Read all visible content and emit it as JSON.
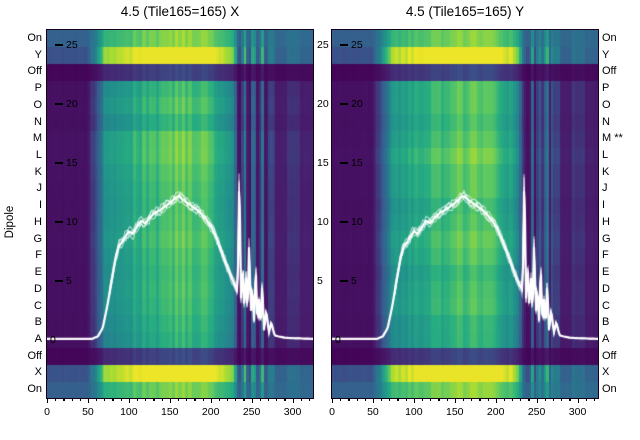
{
  "chart_data": {
    "type": "heatmap",
    "plots": [
      {
        "title": "4.5 (Tile165=165) X"
      },
      {
        "title": "4.5 (Tile165=165) Y"
      }
    ],
    "ylabel": "Dipole",
    "x_ticks": [
      0,
      50,
      100,
      150,
      200,
      250,
      300
    ],
    "x_minor_step": 10,
    "x_range": [
      0,
      325
    ],
    "y_ticks": [
      25,
      20,
      15,
      10,
      5
    ],
    "y_zero": "0",
    "rows_left": [
      "On",
      "Y",
      "Off",
      "P",
      "O",
      "N",
      "M",
      "L",
      "K",
      "J",
      "I",
      "H",
      "G",
      "F",
      "E",
      "D",
      "C",
      "B",
      "A",
      "Off",
      "X",
      "On"
    ],
    "rows_right": [
      "On",
      "Y",
      "Off",
      "P",
      "O",
      "N",
      "M **",
      "L",
      "K",
      "J",
      "I",
      "H",
      "G",
      "F",
      "E",
      "D",
      "C",
      "B",
      "A",
      "Off",
      "X",
      "On"
    ],
    "row_types": [
      "on",
      "bright",
      "off",
      "letter",
      "letter",
      "letter",
      "letter",
      "letter",
      "letter",
      "letter",
      "letter",
      "letter",
      "letter",
      "letter",
      "letter",
      "letter",
      "letter",
      "letter",
      "letter",
      "off",
      "bright",
      "on"
    ],
    "row_gains": [
      1,
      1,
      1,
      0.92,
      0.96,
      0.9,
      1.0,
      1.03,
      0.99,
      0.96,
      0.91,
      0.94,
      0.97,
      0.91,
      0.88,
      0.93,
      0.9,
      0.86,
      0.82,
      1,
      1,
      1
    ],
    "colormap": "viridis",
    "colormap_anchors": [
      [
        0.0,
        "#440154"
      ],
      [
        0.13,
        "#471f6e"
      ],
      [
        0.25,
        "#39568c"
      ],
      [
        0.38,
        "#2d708e"
      ],
      [
        0.5,
        "#21908c"
      ],
      [
        0.63,
        "#27ad81"
      ],
      [
        0.75,
        "#5cc863"
      ],
      [
        0.88,
        "#aadc32"
      ],
      [
        1.0,
        "#fde725"
      ]
    ],
    "line_color": "#ffffff",
    "line_profile": {
      "n_traces": 5,
      "points": [
        [
          0,
          0.1
        ],
        [
          55,
          0.1
        ],
        [
          62,
          0.3
        ],
        [
          68,
          1.0
        ],
        [
          74,
          3.0
        ],
        [
          80,
          5.5
        ],
        [
          84,
          7.0
        ],
        [
          88,
          8.0
        ],
        [
          92,
          8.3
        ],
        [
          96,
          8.8
        ],
        [
          100,
          9.2
        ],
        [
          105,
          9.0
        ],
        [
          110,
          9.6
        ],
        [
          115,
          10.1
        ],
        [
          120,
          9.9
        ],
        [
          126,
          10.4
        ],
        [
          132,
          10.8
        ],
        [
          138,
          11.0
        ],
        [
          144,
          11.3
        ],
        [
          150,
          11.6
        ],
        [
          156,
          12.0
        ],
        [
          161,
          12.2
        ],
        [
          166,
          11.9
        ],
        [
          172,
          11.6
        ],
        [
          178,
          11.3
        ],
        [
          184,
          11.0
        ],
        [
          190,
          10.6
        ],
        [
          196,
          10.1
        ],
        [
          202,
          9.4
        ],
        [
          208,
          8.5
        ],
        [
          214,
          7.4
        ],
        [
          220,
          6.2
        ],
        [
          226,
          5.2
        ],
        [
          230,
          4.6
        ],
        [
          233,
          4.2
        ],
        [
          235,
          14.8
        ],
        [
          237,
          3.5
        ],
        [
          239,
          6.5
        ],
        [
          241,
          2.5
        ],
        [
          243,
          5.5
        ],
        [
          245,
          2.0
        ],
        [
          247,
          8.5
        ],
        [
          249,
          2.2
        ],
        [
          251,
          4.5
        ],
        [
          253,
          1.5
        ],
        [
          255,
          6.5
        ],
        [
          257,
          1.2
        ],
        [
          259,
          3.5
        ],
        [
          261,
          1.0
        ],
        [
          263,
          5.0
        ],
        [
          265,
          0.8
        ],
        [
          268,
          2.5
        ],
        [
          271,
          0.6
        ],
        [
          274,
          1.5
        ],
        [
          278,
          0.4
        ],
        [
          283,
          0.3
        ],
        [
          290,
          0.2
        ],
        [
          300,
          0.15
        ],
        [
          325,
          0.1
        ]
      ]
    }
  }
}
